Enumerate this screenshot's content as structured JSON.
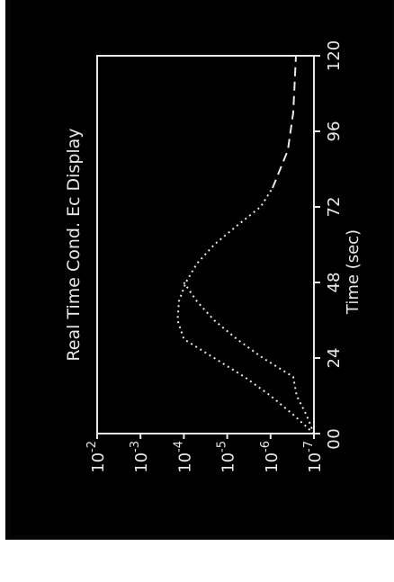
{
  "chart_data": {
    "type": "line",
    "orientation": "rotated-90-ccw",
    "title": "Real Time Cond. Ec Display",
    "xlabel": "Time (sec)",
    "ylabel": "",
    "x_ticks": [
      0,
      24,
      48,
      72,
      96,
      120
    ],
    "x_tick_labels": [
      "0",
      "24",
      "48",
      "72",
      "96",
      "120"
    ],
    "xlim": [
      0,
      120
    ],
    "y_scale": "log",
    "y_ticks": [
      1e-07,
      1e-06,
      1e-05,
      0.0001,
      0.001,
      0.01
    ],
    "y_tick_labels": [
      {
        "base": "10",
        "exp": "-7"
      },
      {
        "base": "10",
        "exp": "-6"
      },
      {
        "base": "10",
        "exp": "-5"
      },
      {
        "base": "10",
        "exp": "-4"
      },
      {
        "base": "10",
        "exp": "-3"
      },
      {
        "base": "10",
        "exp": "-2"
      }
    ],
    "ylim": [
      1e-07,
      0.01
    ],
    "zero_label": "0",
    "grid": false,
    "series": [
      {
        "style": "dotted",
        "x": [
          0,
          6,
          12,
          18,
          24,
          30,
          36,
          42,
          48,
          54,
          60,
          66,
          72,
          78
        ],
        "y": [
          1e-07,
          3e-07,
          1e-06,
          4e-06,
          2e-05,
          0.0001,
          0.00014,
          0.00013,
          9e-05,
          5e-05,
          2e-05,
          6e-06,
          1.7e-06,
          9e-07
        ]
      },
      {
        "style": "dotted",
        "x": [
          0,
          6,
          12,
          18,
          24,
          30,
          36,
          42,
          48
        ],
        "y": [
          1e-07,
          1.5e-07,
          2.5e-07,
          3e-07,
          1.5e-06,
          6e-06,
          2e-05,
          5e-05,
          0.0001
        ]
      },
      {
        "style": "dashed",
        "x": [
          78,
          90,
          102,
          120
        ],
        "y": [
          9e-07,
          4e-07,
          3e-07,
          2.6e-07
        ]
      }
    ]
  },
  "colors": {
    "background": "#000000",
    "foreground": "#e8e8e8",
    "page": "#ffffff"
  }
}
